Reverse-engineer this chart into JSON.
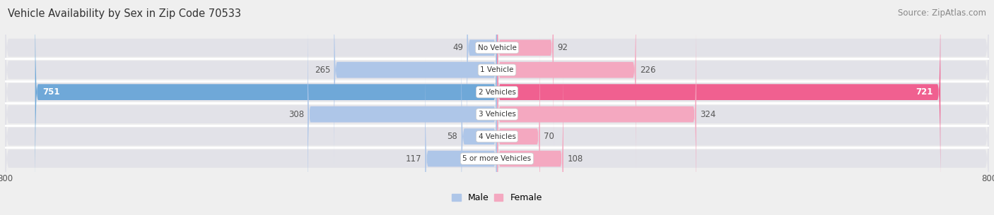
{
  "title": "Vehicle Availability by Sex in Zip Code 70533",
  "source": "Source: ZipAtlas.com",
  "categories": [
    "No Vehicle",
    "1 Vehicle",
    "2 Vehicles",
    "3 Vehicles",
    "4 Vehicles",
    "5 or more Vehicles"
  ],
  "male_values": [
    49,
    265,
    751,
    308,
    58,
    117
  ],
  "female_values": [
    92,
    226,
    721,
    324,
    70,
    108
  ],
  "male_color": "#aec6e8",
  "female_color": "#f4a8c0",
  "male_color_large": "#6fa8d8",
  "female_color_large": "#f06090",
  "xlim_left": -800,
  "xlim_right": 800,
  "background_color": "#efefef",
  "bar_background": "#e2e2e8",
  "title_fontsize": 10.5,
  "source_fontsize": 8.5,
  "label_fontsize": 8.5,
  "bar_height": 0.72,
  "label_color_inside": "#ffffff",
  "label_color_outside": "#555555",
  "large_threshold": 400
}
